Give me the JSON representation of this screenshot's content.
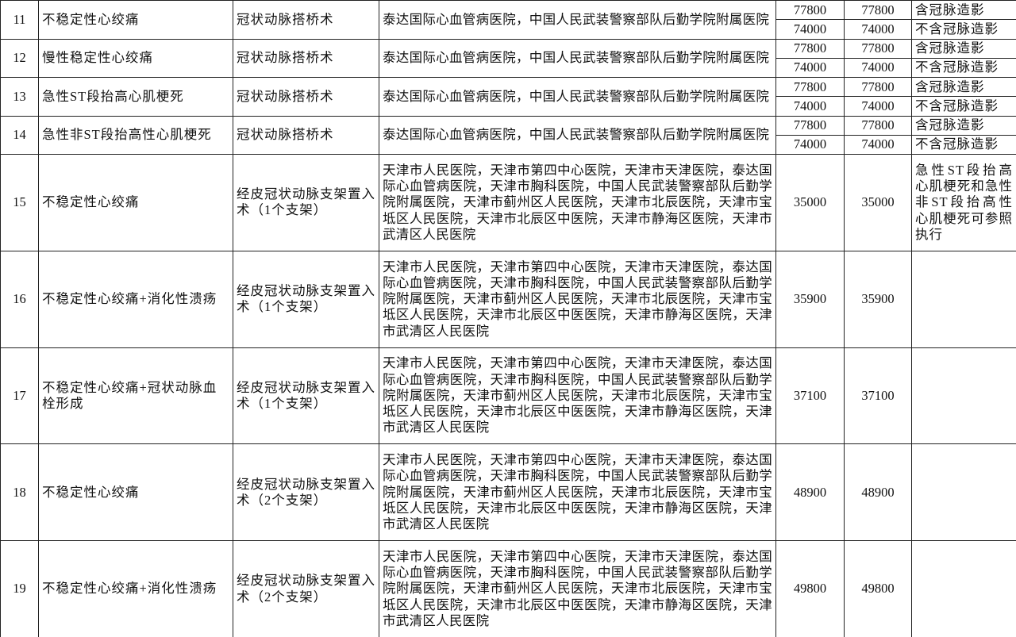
{
  "table": {
    "rows": [
      {
        "no": "11",
        "diagnosis": "不稳定性心绞痛",
        "procedure": "冠状动脉搭桥术",
        "hospitals": "泰达国际心血管病医院，中国人民武装警察部队后勤学院附属医院",
        "prices": [
          {
            "a": 77800,
            "b": 77800,
            "note": "含冠脉造影"
          },
          {
            "a": 74000,
            "b": 74000,
            "note": "不含冠脉造影"
          }
        ]
      },
      {
        "no": "12",
        "diagnosis": "慢性稳定性心绞痛",
        "procedure": "冠状动脉搭桥术",
        "hospitals": "泰达国际心血管病医院，中国人民武装警察部队后勤学院附属医院",
        "prices": [
          {
            "a": 77800,
            "b": 77800,
            "note": "含冠脉造影"
          },
          {
            "a": 74000,
            "b": 74000,
            "note": "不含冠脉造影"
          }
        ]
      },
      {
        "no": "13",
        "diagnosis": "急性ST段抬高心肌梗死",
        "procedure": "冠状动脉搭桥术",
        "hospitals": "泰达国际心血管病医院，中国人民武装警察部队后勤学院附属医院",
        "prices": [
          {
            "a": 77800,
            "b": 77800,
            "note": "含冠脉造影"
          },
          {
            "a": 74000,
            "b": 74000,
            "note": "不含冠脉造影"
          }
        ]
      },
      {
        "no": "14",
        "diagnosis": "急性非ST段抬高性心肌梗死",
        "procedure": "冠状动脉搭桥术",
        "hospitals": "泰达国际心血管病医院，中国人民武装警察部队后勤学院附属医院",
        "prices": [
          {
            "a": 77800,
            "b": 77800,
            "note": "含冠脉造影"
          },
          {
            "a": 74000,
            "b": 74000,
            "note": "不含冠脉造影"
          }
        ]
      },
      {
        "no": "15",
        "diagnosis": "不稳定性心绞痛",
        "procedure": "经皮冠状动脉支架置入术（1个支架）",
        "hospitals": "天津市人民医院，天津市第四中心医院，天津市天津医院，泰达国际心血管病医院，天津市胸科医院，中国人民武装警察部队后勤学院附属医院，天津市蓟州区人民医院，天津市北辰医院，天津市宝坻区人民医院，天津市北辰区中医院，天津市静海区医院，天津市武清区人民医院",
        "prices": [
          {
            "a": 35000,
            "b": 35000,
            "note": "急性ST段抬高心肌梗死和急性非ST段抬高性心肌梗死可参照执行"
          }
        ]
      },
      {
        "no": "16",
        "diagnosis": "不稳定性心绞痛+消化性溃疡",
        "procedure": "经皮冠状动脉支架置入术（1个支架）",
        "hospitals": "天津市人民医院，天津市第四中心医院，天津市天津医院，泰达国际心血管病医院，天津市胸科医院，中国人民武装警察部队后勤学院附属医院，天津市蓟州区人民医院，天津市北辰医院，天津市宝坻区人民医院，天津市北辰区中医医院，天津市静海区医院，天津市武清区人民医院",
        "prices": [
          {
            "a": 35900,
            "b": 35900
          }
        ]
      },
      {
        "no": "17",
        "diagnosis": "不稳定性心绞痛+冠状动脉血栓形成",
        "procedure": "经皮冠状动脉支架置入术（1个支架）",
        "hospitals": "天津市人民医院，天津市第四中心医院，天津市天津医院，泰达国际心血管病医院，天津市胸科医院，中国人民武装警察部队后勤学院附属医院，天津市蓟州区人民医院，天津市北辰医院，天津市宝坻区人民医院，天津市北辰区中医医院，天津市静海区医院，天津市武清区人民医院",
        "prices": [
          {
            "a": 37100,
            "b": 37100
          }
        ]
      },
      {
        "no": "18",
        "diagnosis": "不稳定性心绞痛",
        "procedure": "经皮冠状动脉支架置入术（2个支架）",
        "hospitals": "天津市人民医院，天津市第四中心医院，天津市天津医院，泰达国际心血管病医院，天津市胸科医院，中国人民武装警察部队后勤学院附属医院，天津市蓟州区人民医院，天津市北辰医院，天津市宝坻区人民医院，天津市北辰区中医医院，天津市静海区医院，天津市武清区人民医院",
        "prices": [
          {
            "a": 48900,
            "b": 48900
          }
        ]
      },
      {
        "no": "19",
        "diagnosis": "不稳定性心绞痛+消化性溃疡",
        "procedure": "经皮冠状动脉支架置入术（2个支架）",
        "hospitals": "天津市人民医院，天津市第四中心医院，天津市天津医院，泰达国际心血管病医院，天津市胸科医院，中国人民武装警察部队后勤学院附属医院，天津市蓟州区人民医院，天津市北辰医院，天津市宝坻区人民医院，天津市北辰区中医医院，天津市静海区医院，天津市武清区人民医院",
        "prices": [
          {
            "a": 49800,
            "b": 49800
          }
        ]
      }
    ]
  }
}
